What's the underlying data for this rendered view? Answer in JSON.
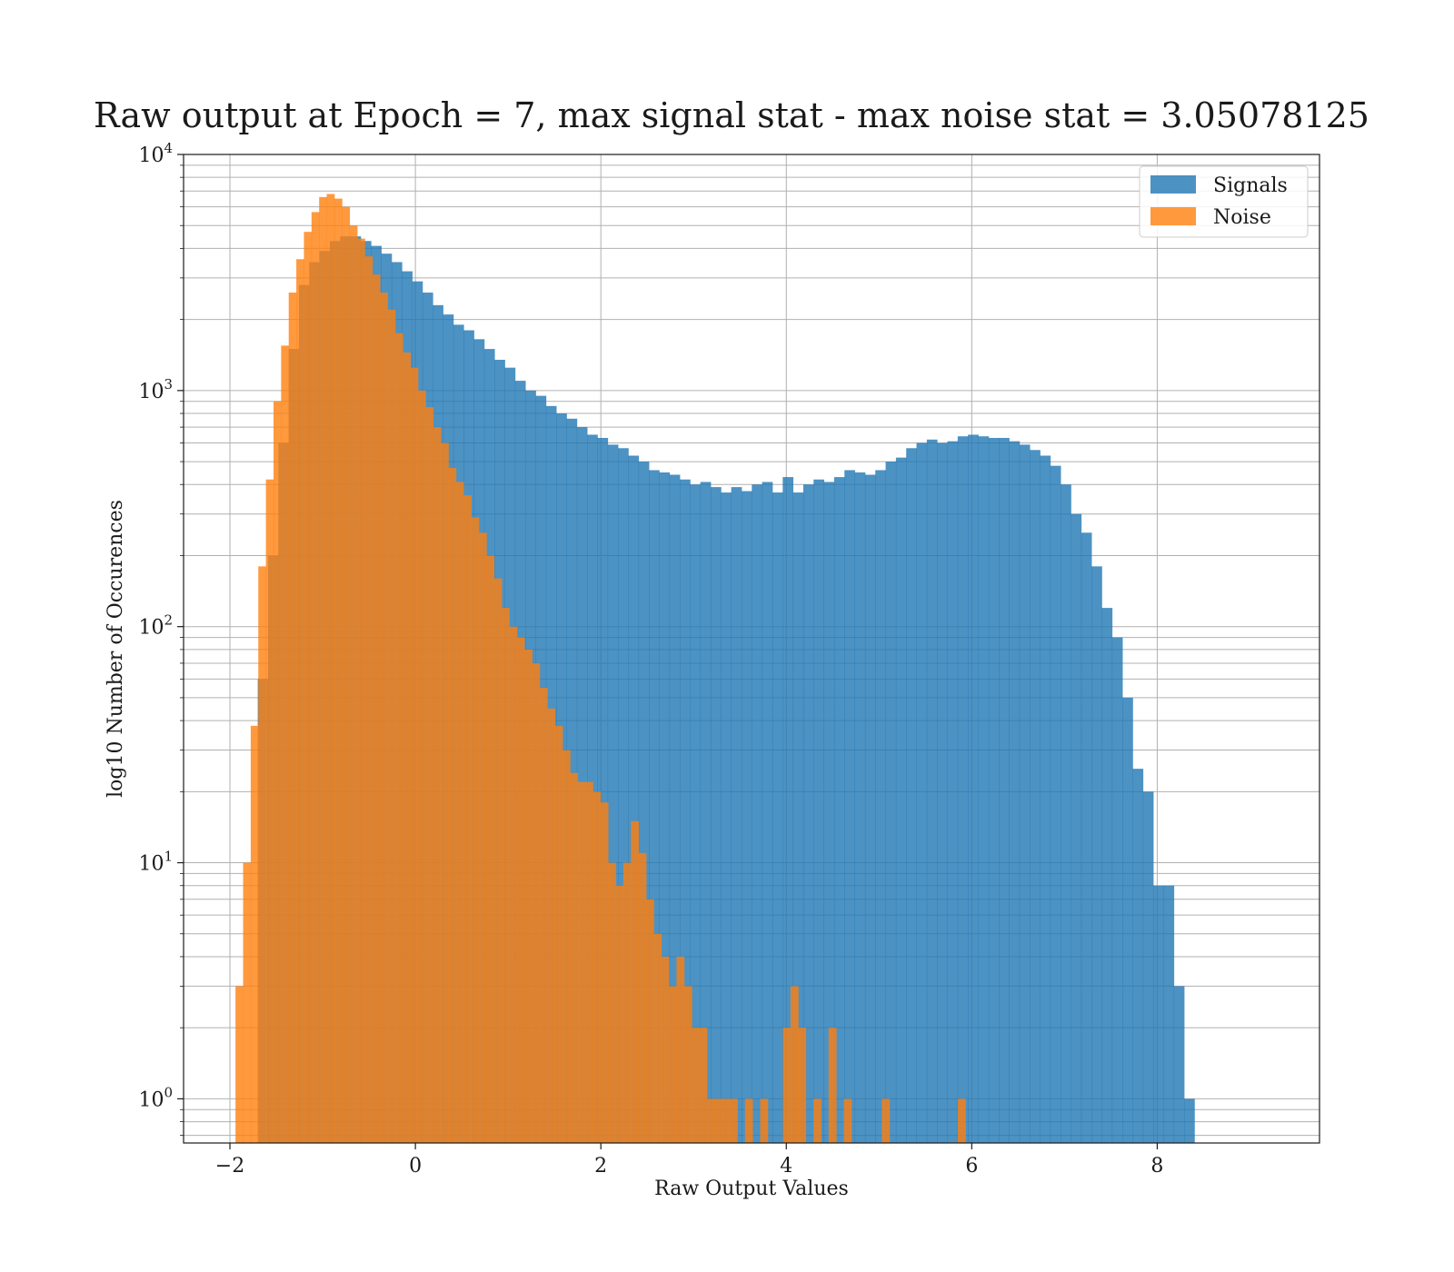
{
  "chart_data": {
    "type": "bar",
    "title": "Raw output at Epoch = 7, max signal stat - max noise stat = 3.05078125",
    "xlabel": "Raw Output Values",
    "ylabel": "log10 Number of Occurences",
    "y_scale": "log",
    "xlim": [
      -2.5,
      9.75
    ],
    "ylim": [
      0.65,
      10000
    ],
    "x_ticks": [
      -2,
      0,
      2,
      4,
      6,
      8
    ],
    "x_tick_labels": [
      "−2",
      "0",
      "2",
      "4",
      "6",
      "8"
    ],
    "y_ticks": [
      1,
      10,
      100,
      1000,
      10000
    ],
    "y_tick_labels": [
      {
        "base": "10",
        "exp": "0"
      },
      {
        "base": "10",
        "exp": "1"
      },
      {
        "base": "10",
        "exp": "2"
      },
      {
        "base": "10",
        "exp": "3"
      },
      {
        "base": "10",
        "exp": "4"
      }
    ],
    "grid": true,
    "legend_position": "top-right",
    "series": [
      {
        "name": "Signals",
        "color": "#1f77b4",
        "alpha": 0.8,
        "bin_start": -1.7,
        "bin_width": 0.111,
        "values": [
          60,
          200,
          600,
          1500,
          2800,
          3500,
          3900,
          4300,
          4500,
          4500,
          4300,
          4100,
          3800,
          3500,
          3200,
          2900,
          2600,
          2300,
          2100,
          1900,
          1800,
          1650,
          1500,
          1350,
          1250,
          1100,
          1000,
          950,
          860,
          800,
          760,
          700,
          650,
          630,
          590,
          570,
          530,
          500,
          460,
          450,
          440,
          420,
          400,
          410,
          390,
          370,
          390,
          375,
          400,
          410,
          370,
          430,
          370,
          400,
          420,
          410,
          430,
          460,
          450,
          440,
          460,
          500,
          520,
          570,
          600,
          620,
          600,
          610,
          640,
          650,
          640,
          630,
          630,
          610,
          590,
          560,
          530,
          480,
          400,
          300,
          250,
          180,
          120,
          90,
          50,
          25,
          20,
          8,
          8,
          3,
          1
        ]
      },
      {
        "name": "Noise",
        "color": "#ff7f0e",
        "alpha": 0.8,
        "bin_start": -1.94,
        "bin_width": 0.082,
        "values": [
          3,
          10,
          38,
          180,
          420,
          900,
          1550,
          2600,
          3600,
          4700,
          5700,
          6600,
          6800,
          6500,
          6000,
          5000,
          4400,
          3700,
          3100,
          2600,
          2200,
          1750,
          1450,
          1250,
          1000,
          850,
          700,
          600,
          470,
          410,
          360,
          290,
          250,
          200,
          160,
          120,
          100,
          90,
          80,
          70,
          55,
          45,
          38,
          30,
          24,
          22,
          22,
          20,
          18,
          10,
          8,
          10,
          15,
          11,
          7,
          5,
          4,
          3,
          4,
          3,
          2,
          2,
          1,
          1,
          1,
          1,
          0,
          1,
          0,
          1,
          0,
          0,
          2,
          3,
          2,
          0,
          1,
          0,
          2,
          0,
          1,
          0,
          0,
          0,
          0,
          1,
          0,
          0,
          0,
          0,
          0,
          0,
          0,
          0,
          0,
          1
        ]
      }
    ]
  }
}
